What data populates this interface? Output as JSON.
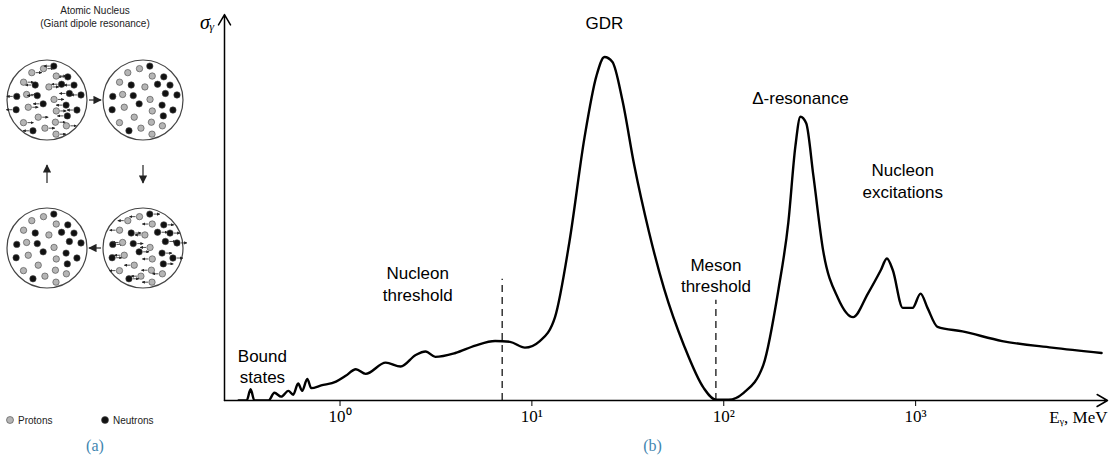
{
  "diagram": {
    "title": "Atomic Nucleus",
    "subtitle": "(Giant dipole resonance)",
    "panel_label": "(a)",
    "legend": [
      {
        "label": "Protons",
        "color": "#b5b5b5"
      },
      {
        "label": "Neutrons",
        "color": "#111111"
      }
    ]
  },
  "chart_data": {
    "type": "line",
    "panel_label": "(b)",
    "x_label": "Eᵧ, MeV",
    "y_label": "σᵧ",
    "log": "x",
    "grid": false,
    "tick_labels": "x",
    "color": "#000000",
    "xlim": [
      0.25,
      10000
    ],
    "xticks": [
      {
        "value": 1,
        "label": "10⁰"
      },
      {
        "value": 10,
        "label": "10¹"
      },
      {
        "value": 100,
        "label": "10²"
      },
      {
        "value": 1000,
        "label": "10³"
      }
    ],
    "ylim": [
      0,
      100
    ],
    "yticks": [],
    "x": [
      0.296,
      0.326,
      0.342,
      0.358,
      0.424,
      0.455,
      0.494,
      0.538,
      0.57,
      0.605,
      0.635,
      0.675,
      0.708,
      0.798,
      0.953,
      1.07,
      1.21,
      1.36,
      1.73,
      2.07,
      2.48,
      2.79,
      3.14,
      3.99,
      5.07,
      6.43,
      7.69,
      9.2,
      11.0,
      13.2,
      15.7,
      18.8,
      21.7,
      23.9,
      26.3,
      29.6,
      34.2,
      40.8,
      48.9,
      62.1,
      78.7,
      91.0,
      106,
      127,
      161,
      193,
      217,
      236,
      251,
      269,
      293,
      330,
      394,
      472,
      564,
      659,
      708,
      760,
      857,
      964,
      1061,
      1153,
      1300,
      1754,
      2825,
      5129,
      9311
    ],
    "values": [
      0,
      0,
      2.9,
      0,
      0,
      2.0,
      1.0,
      2.5,
      1.5,
      4.4,
      2.5,
      5.6,
      3.2,
      3.9,
      4.9,
      6.4,
      8.1,
      6.9,
      9.8,
      8.8,
      11.8,
      12.7,
      11.3,
      12.3,
      14.2,
      15.4,
      15.2,
      13.7,
      15.4,
      21.6,
      41.2,
      68.1,
      84.1,
      89.0,
      87.7,
      77.9,
      60.8,
      43.6,
      28.9,
      14.2,
      3.2,
      0.2,
      0.2,
      2.0,
      9.3,
      28.9,
      46.1,
      65.7,
      73.5,
      71.8,
      58.3,
      38.7,
      26.5,
      21.6,
      27.7,
      33.8,
      36.8,
      33.8,
      24.0,
      24.0,
      27.7,
      24.0,
      19.1,
      17.9,
      15.4,
      13.7,
      12.3
    ],
    "annotations": [
      {
        "text": "Bound states",
        "x": 0.394,
        "y": 9
      },
      {
        "text": "GDR",
        "x": 23.9,
        "y": 98
      },
      {
        "text": "Δ-resonance",
        "x": 251,
        "y": 78.7
      },
      {
        "text": "Nucleon excitations",
        "x": 857,
        "y": 57.1
      }
    ],
    "thresholds": [
      {
        "text": "Nucleon threshold",
        "x": 7,
        "line_top": 31.4,
        "text_x": 2.54,
        "text_y": 30.4
      },
      {
        "text": "Meson threshold",
        "x": 91,
        "line_top": 26,
        "text_x": 91,
        "text_y": 32.6
      }
    ]
  }
}
